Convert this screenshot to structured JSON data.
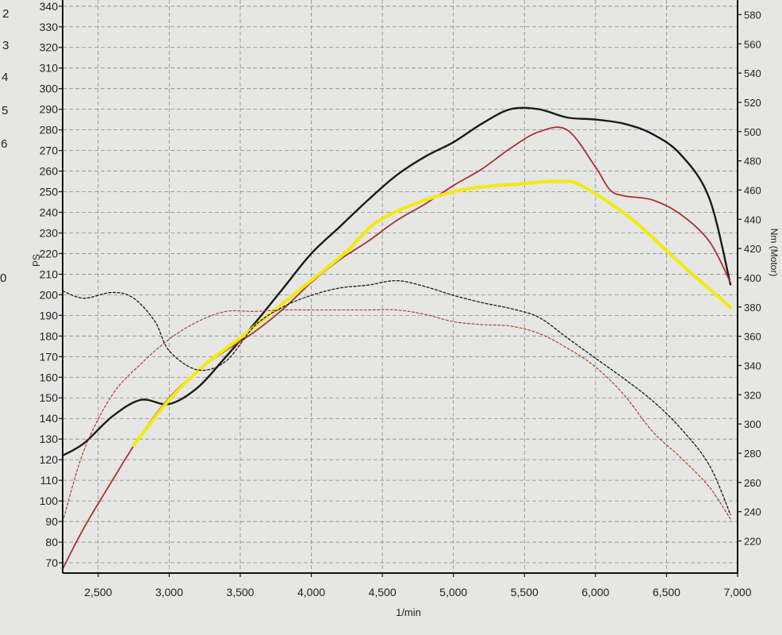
{
  "left_margin_numbers": [
    "2",
    "3",
    "4",
    "5",
    "6",
    "0"
  ],
  "chart_data": {
    "type": "line",
    "xlabel": "1/min",
    "ylabel_left": "PS",
    "ylabel_right": "Nm (Motor)",
    "x_ticks": [
      2500,
      3000,
      3500,
      4000,
      4500,
      5000,
      5500,
      6000,
      6500,
      7000
    ],
    "x_tick_labels": [
      "2,500",
      "3,000",
      "3,500",
      "4,000",
      "4,500",
      "5,000",
      "5,500",
      "6,000",
      "6,500",
      "7,000"
    ],
    "xlim": [
      2250,
      7000
    ],
    "ylim_left": [
      65,
      343
    ],
    "ylim_right": [
      198,
      590
    ],
    "y_ticks_left": [
      70,
      80,
      90,
      100,
      110,
      120,
      130,
      140,
      150,
      160,
      170,
      180,
      190,
      200,
      210,
      220,
      230,
      240,
      250,
      260,
      270,
      280,
      290,
      300,
      310,
      320,
      330,
      340
    ],
    "y_ticks_right": [
      220,
      240,
      260,
      280,
      300,
      320,
      340,
      360,
      380,
      400,
      420,
      440,
      460,
      480,
      500,
      520,
      540,
      560,
      580
    ],
    "grid": true,
    "colors": {
      "black": "#1a1a1a",
      "red": "#a8342c",
      "yellow": "#f2ea10"
    },
    "series": [
      {
        "color": "black",
        "style": "solid",
        "axis": "left",
        "x": [
          2250,
          2400,
          2600,
          2800,
          3000,
          3200,
          3400,
          3600,
          3800,
          4000,
          4200,
          4400,
          4600,
          4800,
          5000,
          5200,
          5400,
          5600,
          5800,
          6000,
          6200,
          6400,
          6600,
          6800,
          6950
        ],
        "y": [
          122,
          128,
          141,
          149,
          147,
          155,
          170,
          186,
          203,
          220,
          233,
          246,
          258,
          267,
          274,
          283,
          290,
          290,
          286,
          285,
          283,
          278,
          268,
          247,
          205
        ]
      },
      {
        "color": "red",
        "style": "solid",
        "axis": "left",
        "x": [
          2250,
          2400,
          2600,
          2800,
          3000,
          3200,
          3400,
          3600,
          3800,
          4000,
          4200,
          4400,
          4600,
          4800,
          5000,
          5200,
          5400,
          5600,
          5800,
          6000,
          6100,
          6200,
          6400,
          6600,
          6800,
          6950
        ],
        "y": [
          67,
          87,
          110,
          132,
          150,
          163,
          173,
          182,
          193,
          206,
          217,
          226,
          236,
          244,
          253,
          261,
          271,
          279,
          280,
          262,
          251,
          248,
          246,
          239,
          226,
          206
        ]
      },
      {
        "color": "yellow",
        "style": "solid",
        "axis": "left",
        "x": [
          2750,
          3000,
          3250,
          3500,
          3750,
          4000,
          4250,
          4500,
          5000,
          5500,
          5750,
          5900,
          6250,
          6600,
          6950
        ],
        "y": [
          127,
          149,
          166,
          179,
          193,
          207,
          221,
          237,
          250,
          254,
          255,
          253,
          237,
          215,
          194
        ]
      },
      {
        "color": "black",
        "style": "dashed",
        "axis": "right",
        "x": [
          2250,
          2400,
          2600,
          2750,
          2900,
          3000,
          3200,
          3400,
          3600,
          3800,
          4000,
          4200,
          4400,
          4600,
          4800,
          5000,
          5200,
          5400,
          5600,
          5800,
          6000,
          6200,
          6400,
          6600,
          6800,
          6950
        ],
        "y": [
          391,
          386,
          390,
          386,
          370,
          350,
          337,
          343,
          367,
          380,
          388,
          393,
          395,
          398,
          394,
          388,
          383,
          379,
          373,
          359,
          345,
          331,
          316,
          297,
          272,
          238
        ]
      },
      {
        "color": "red",
        "style": "dashed",
        "axis": "right",
        "x": [
          2250,
          2400,
          2600,
          2800,
          3000,
          3200,
          3400,
          3600,
          3800,
          4000,
          4200,
          4400,
          4600,
          4800,
          5000,
          5200,
          5400,
          5600,
          5800,
          6000,
          6200,
          6400,
          6600,
          6800,
          6950
        ],
        "y": [
          233,
          282,
          320,
          341,
          358,
          370,
          377,
          377,
          378,
          378,
          378,
          378,
          378,
          375,
          370,
          368,
          367,
          362,
          352,
          339,
          320,
          295,
          277,
          257,
          235
        ]
      }
    ]
  }
}
